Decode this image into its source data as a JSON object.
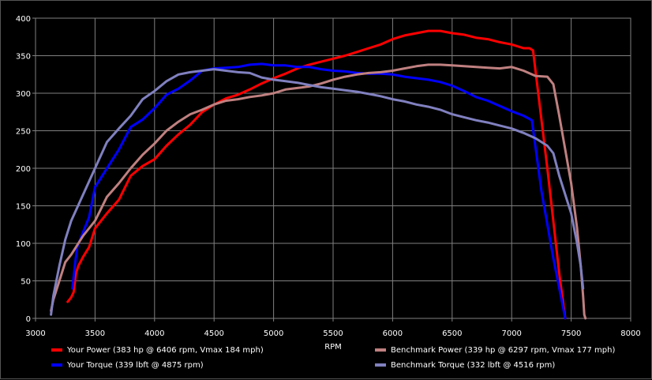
{
  "chart_data": {
    "type": "line",
    "title": "",
    "xlabel": "RPM",
    "ylabel": "",
    "xlim": [
      3000,
      8000
    ],
    "ylim": [
      0,
      400
    ],
    "x_ticks": [
      3000,
      3500,
      4000,
      4500,
      5000,
      5500,
      6000,
      6500,
      7000,
      7500,
      8000
    ],
    "y_ticks": [
      0,
      50,
      100,
      150,
      200,
      250,
      300,
      350,
      400
    ],
    "grid": true,
    "legend_position": "bottom",
    "series": [
      {
        "name": "Your Power (383 hp @ 6406 rpm, Vmax 184 mph)",
        "color": "#ff0000",
        "x": [
          3270,
          3300,
          3320,
          3340,
          3360,
          3400,
          3450,
          3500,
          3600,
          3700,
          3800,
          3900,
          4000,
          4100,
          4200,
          4300,
          4400,
          4500,
          4600,
          4700,
          4800,
          4900,
          5000,
          5100,
          5200,
          5300,
          5400,
          5500,
          5600,
          5700,
          5800,
          5900,
          6000,
          6100,
          6200,
          6300,
          6400,
          6500,
          6600,
          6700,
          6800,
          6900,
          7000,
          7100,
          7150,
          7180,
          7300,
          7400,
          7450
        ],
        "y": [
          22,
          28,
          35,
          60,
          70,
          82,
          95,
          120,
          140,
          158,
          190,
          203,
          212,
          230,
          245,
          258,
          275,
          285,
          293,
          298,
          305,
          313,
          320,
          326,
          333,
          338,
          342,
          346,
          350,
          355,
          360,
          365,
          372,
          377,
          380,
          383,
          383,
          380,
          378,
          374,
          372,
          368,
          365,
          360,
          360,
          357,
          200,
          60,
          0
        ]
      },
      {
        "name": "Your Torque (339 lbft @ 4875 rpm)",
        "color": "#0000ff",
        "x": [
          3310,
          3330,
          3350,
          3400,
          3450,
          3500,
          3600,
          3700,
          3800,
          3900,
          4000,
          4100,
          4200,
          4300,
          4400,
          4500,
          4600,
          4700,
          4800,
          4900,
          5000,
          5100,
          5200,
          5300,
          5400,
          5500,
          5600,
          5700,
          5800,
          5900,
          6000,
          6100,
          6200,
          6300,
          6400,
          6500,
          6600,
          6700,
          6800,
          6900,
          7000,
          7100,
          7170,
          7250,
          7350,
          7450
        ],
        "y": [
          40,
          70,
          95,
          115,
          135,
          175,
          200,
          225,
          255,
          265,
          280,
          298,
          306,
          317,
          330,
          333,
          334,
          335,
          338,
          339,
          337,
          337,
          335,
          335,
          332,
          330,
          329,
          327,
          326,
          326,
          325,
          322,
          320,
          318,
          315,
          310,
          303,
          295,
          290,
          283,
          276,
          270,
          264,
          170,
          80,
          0
        ]
      },
      {
        "name": "Benchmark Power (339 hp @ 6297 rpm, Vmax 177 mph)",
        "color": "#c08080",
        "x": [
          3130,
          3150,
          3200,
          3250,
          3300,
          3400,
          3500,
          3600,
          3700,
          3800,
          3900,
          4000,
          4100,
          4200,
          4300,
          4400,
          4500,
          4600,
          4700,
          4800,
          4900,
          5000,
          5100,
          5200,
          5300,
          5400,
          5500,
          5600,
          5700,
          5800,
          5900,
          6000,
          6100,
          6200,
          6300,
          6400,
          6500,
          6600,
          6700,
          6800,
          6900,
          7000,
          7100,
          7200,
          7300,
          7350,
          7400,
          7500,
          7550,
          7580,
          7600,
          7610,
          7620
        ],
        "y": [
          10,
          25,
          50,
          75,
          85,
          110,
          130,
          162,
          180,
          200,
          218,
          233,
          250,
          262,
          272,
          278,
          285,
          290,
          292,
          295,
          297,
          300,
          305,
          307,
          309,
          313,
          318,
          322,
          325,
          327,
          328,
          330,
          333,
          336,
          338,
          338,
          337,
          336,
          335,
          334,
          333,
          335,
          330,
          323,
          322,
          312,
          270,
          180,
          120,
          70,
          30,
          5,
          0
        ]
      },
      {
        "name": "Benchmark Torque (332 lbft @ 4516 rpm)",
        "color": "#8080c0",
        "x": [
          3130,
          3150,
          3200,
          3250,
          3300,
          3400,
          3500,
          3600,
          3700,
          3800,
          3900,
          4000,
          4100,
          4200,
          4300,
          4400,
          4500,
          4600,
          4700,
          4800,
          4900,
          5000,
          5100,
          5200,
          5300,
          5400,
          5500,
          5600,
          5700,
          5800,
          5900,
          6000,
          6100,
          6200,
          6300,
          6400,
          6500,
          6600,
          6700,
          6800,
          6900,
          7000,
          7100,
          7200,
          7300,
          7350,
          7400,
          7500,
          7550,
          7580,
          7600
        ],
        "y": [
          5,
          30,
          70,
          105,
          130,
          165,
          200,
          235,
          253,
          270,
          292,
          303,
          316,
          325,
          328,
          330,
          332,
          330,
          328,
          327,
          321,
          318,
          316,
          314,
          311,
          308,
          306,
          304,
          302,
          299,
          296,
          292,
          289,
          285,
          282,
          278,
          272,
          268,
          264,
          261,
          257,
          253,
          247,
          240,
          230,
          220,
          190,
          140,
          100,
          70,
          40
        ]
      }
    ]
  }
}
